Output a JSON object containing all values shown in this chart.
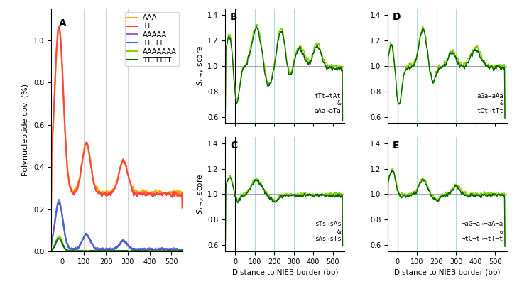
{
  "panel_A": {
    "label": "A",
    "ylabel": "Polynucleotide cov. (%)",
    "ylim": [
      0,
      1.15
    ],
    "xlim": [
      -50,
      550
    ],
    "yticks": [
      0,
      0.2,
      0.4,
      0.6,
      0.8,
      1.0
    ],
    "xticks": [
      0,
      100,
      200,
      300,
      400,
      500
    ],
    "vlines": [
      0,
      100,
      200,
      300
    ],
    "legend_labels": [
      "AAA",
      "TTT",
      "AAAAA",
      "TTTTT",
      "AAAAAAA",
      "TTTTTTT"
    ],
    "legend_colors": [
      "#FFA500",
      "#FF4444",
      "#9966CC",
      "#4466CC",
      "#88CC00",
      "#006600"
    ]
  },
  "panel_B": {
    "label": "B",
    "ylim": [
      0.55,
      1.45
    ],
    "xlim": [
      -50,
      560
    ],
    "yticks": [
      0.6,
      0.8,
      1.0,
      1.2,
      1.4
    ],
    "xticks": [
      0,
      100,
      200,
      300,
      400,
      500
    ],
    "vlines": [
      0,
      100,
      200,
      300
    ],
    "annotation": "tTt→tAt\n&\naAa→aTa",
    "colors": [
      "#88CC00",
      "#006600"
    ]
  },
  "panel_C": {
    "label": "C",
    "ylim": [
      0.55,
      1.45
    ],
    "xlim": [
      -50,
      560
    ],
    "yticks": [
      0.6,
      0.8,
      1.0,
      1.2,
      1.4
    ],
    "xticks": [
      0,
      100,
      200,
      300,
      400,
      500
    ],
    "vlines": [
      0,
      100,
      200,
      300
    ],
    "annotation": "sTs→sAs\n&\nsAs→sTs",
    "xlabel": "Distance to NIEB border (bp)",
    "colors": [
      "#88CC00",
      "#006600"
    ]
  },
  "panel_D": {
    "label": "D",
    "ylim": [
      0.55,
      1.45
    ],
    "xlim": [
      -50,
      560
    ],
    "yticks": [
      0.6,
      0.8,
      1.0,
      1.2,
      1.4
    ],
    "xticks": [
      0,
      100,
      200,
      300,
      400,
      500
    ],
    "vlines": [
      0,
      100,
      200,
      300
    ],
    "annotation": "aGa→aAa\n&\ntCt→tTt",
    "colors": [
      "#88CC00",
      "#006600"
    ]
  },
  "panel_E": {
    "label": "E",
    "ylim": [
      0.55,
      1.45
    ],
    "xlim": [
      -50,
      560
    ],
    "yticks": [
      0.6,
      0.8,
      1.0,
      1.2,
      1.4
    ],
    "xticks": [
      0,
      100,
      200,
      300,
      400,
      500
    ],
    "vlines": [
      0,
      100,
      200,
      300
    ],
    "annotation": "¬aG¬a→¬aA¬a\n&\n¬tC¬t→¬tT¬t",
    "xlabel": "Distance to NIEB border (bp)",
    "colors": [
      "#88CC00",
      "#006600"
    ]
  },
  "background_color": "#ffffff"
}
